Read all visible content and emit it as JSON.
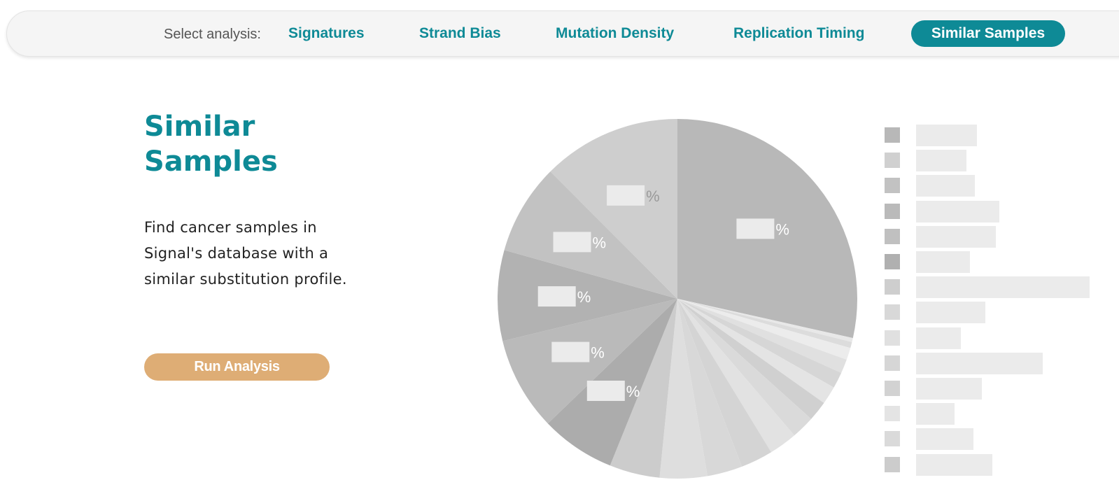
{
  "nav": {
    "label": "Select analysis:",
    "tabs": [
      {
        "label": "Signatures",
        "name": "tab-signatures",
        "active": false
      },
      {
        "label": "Strand Bias",
        "name": "tab-strand-bias",
        "active": false
      },
      {
        "label": "Mutation Density",
        "name": "tab-mutation-density",
        "active": false
      },
      {
        "label": "Replication Timing",
        "name": "tab-replication-timing",
        "active": false
      },
      {
        "label": "Similar Samples",
        "name": "tab-similar-samples",
        "active": true
      }
    ]
  },
  "main": {
    "title_line1": "Similar",
    "title_line2": "Samples",
    "description": "Find cancer samples in Signal's database with a similar substitution profile.",
    "run_button": "Run Analysis"
  },
  "colors": {
    "accent": "#0e8a96",
    "button": "#dead75",
    "placeholder": "#ebebeb"
  },
  "chart_data": {
    "type": "pie",
    "title": "",
    "loading_placeholder": true,
    "percent_symbol": "%",
    "slices": [
      {
        "value": 31.5,
        "color": "#b8b8b8",
        "labeled": true
      },
      {
        "value": 0.4,
        "color": "#e8e8e8",
        "labeled": false
      },
      {
        "value": 0.6,
        "color": "#dcdcdc",
        "labeled": false
      },
      {
        "value": 1.2,
        "color": "#ececec",
        "labeled": false
      },
      {
        "value": 1.4,
        "color": "#e0e0e0",
        "labeled": false
      },
      {
        "value": 1.6,
        "color": "#d6d6d6",
        "labeled": false
      },
      {
        "value": 1.8,
        "color": "#e4e4e4",
        "labeled": false
      },
      {
        "value": 2.0,
        "color": "#d0d0d0",
        "labeled": false
      },
      {
        "value": 2.3,
        "color": "#dadada",
        "labeled": false
      },
      {
        "value": 2.8,
        "color": "#e2e2e2",
        "labeled": false
      },
      {
        "value": 3.2,
        "color": "#d4d4d4",
        "labeled": false
      },
      {
        "value": 3.5,
        "color": "#d8d8d8",
        "labeled": false
      },
      {
        "value": 4.7,
        "color": "#dedede",
        "labeled": false
      },
      {
        "value": 5.0,
        "color": "#cccccc",
        "labeled": false
      },
      {
        "value": 7.4,
        "color": "#acacac",
        "labeled": true
      },
      {
        "value": 9.3,
        "color": "#bababa",
        "labeled": true
      },
      {
        "value": 9.0,
        "color": "#b2b2b2",
        "labeled": true
      },
      {
        "value": 9.0,
        "color": "#c2c2c2",
        "labeled": true
      },
      {
        "value": 13.8,
        "color": "#cecece",
        "labeled": true
      }
    ],
    "legend": [
      {
        "color": "#b8b8b8",
        "value": 0.35
      },
      {
        "color": "#d0d0d0",
        "value": 0.29
      },
      {
        "color": "#c2c2c2",
        "value": 0.34
      },
      {
        "color": "#bababa",
        "value": 0.48
      },
      {
        "color": "#c0c0c0",
        "value": 0.46
      },
      {
        "color": "#b0b0b0",
        "value": 0.31
      },
      {
        "color": "#cecece",
        "value": 1.0
      },
      {
        "color": "#d8d8d8",
        "value": 0.4
      },
      {
        "color": "#e0e0e0",
        "value": 0.26
      },
      {
        "color": "#d6d6d6",
        "value": 0.73
      },
      {
        "color": "#d2d2d2",
        "value": 0.38
      },
      {
        "color": "#e4e4e4",
        "value": 0.22
      },
      {
        "color": "#dadada",
        "value": 0.33
      },
      {
        "color": "#cccccc",
        "value": 0.44
      }
    ]
  }
}
